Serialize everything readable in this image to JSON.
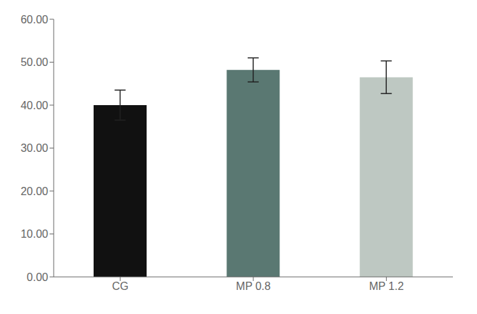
{
  "chart_data": {
    "type": "bar",
    "categories": [
      "CG",
      "MP 0.8",
      "MP 1.2"
    ],
    "values": [
      40.0,
      48.2,
      46.5
    ],
    "errors": [
      3.5,
      2.8,
      3.8
    ],
    "colors": [
      "#111111",
      "#5a7872",
      "#bec8c2"
    ],
    "ylim": [
      0,
      60
    ],
    "yticks": [
      {
        "value": 0,
        "label": "0.00"
      },
      {
        "value": 10,
        "label": "10.00"
      },
      {
        "value": 20,
        "label": "20.00"
      },
      {
        "value": 30,
        "label": "30.00"
      },
      {
        "value": 40,
        "label": "40.00"
      },
      {
        "value": 50,
        "label": "50.00"
      },
      {
        "value": 60,
        "label": "60.00"
      }
    ],
    "grid": false
  }
}
